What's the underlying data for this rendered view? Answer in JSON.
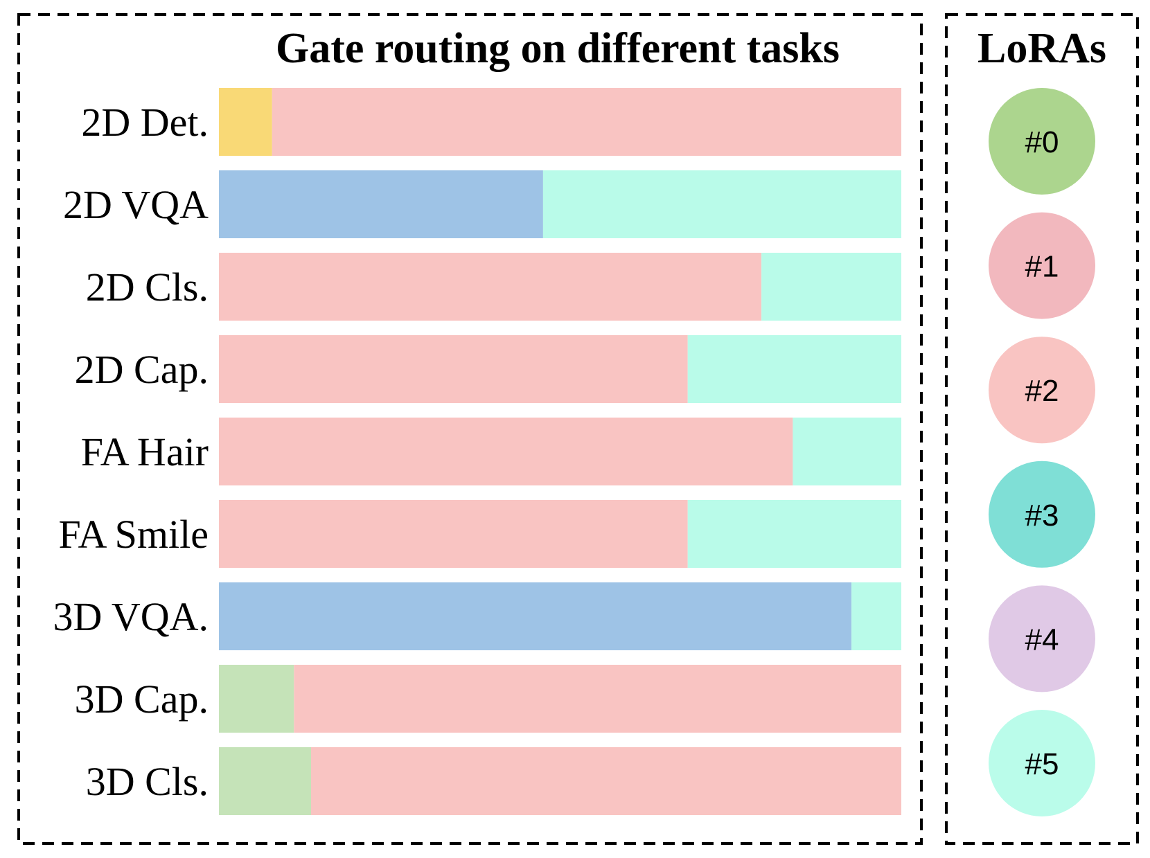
{
  "chart_data": {
    "type": "bar",
    "orientation": "horizontal",
    "stacked": true,
    "title": "Gate routing on different tasks",
    "legend_title": "LoRAs",
    "legend_position": "right",
    "categories": [
      "2D Det.",
      "2D VQA",
      "2D Cls.",
      "2D Cap.",
      "FA Hair",
      "FA Smile",
      "3D VQA.",
      "3D Cap.",
      "3D Cls."
    ],
    "series": [
      {
        "name": "#0",
        "color": "#c5e3b8",
        "values": [
          0,
          0,
          0,
          0,
          0,
          0,
          0,
          0.11,
          0.135
        ]
      },
      {
        "name": "#1",
        "color": "#f9d976",
        "values": [
          0.078,
          0,
          0,
          0,
          0,
          0,
          0,
          0,
          0
        ]
      },
      {
        "name": "#2",
        "color": "#f9c4c2",
        "values": [
          0.922,
          0,
          0.795,
          0.687,
          0.841,
          0.687,
          0,
          0.89,
          0.865
        ]
      },
      {
        "name": "#3",
        "color": "#9ec3e6",
        "values": [
          0,
          0.475,
          0,
          0,
          0,
          0,
          0.927,
          0,
          0
        ]
      },
      {
        "name": "#5",
        "color": "#b9fbe9",
        "values": [
          0,
          0.525,
          0.205,
          0.313,
          0.159,
          0.313,
          0.073,
          0,
          0
        ]
      }
    ],
    "xlim": [
      0,
      1
    ],
    "legend": [
      {
        "label": "#0",
        "color": "#acd58e"
      },
      {
        "label": "#1",
        "color": "#f2b8be"
      },
      {
        "label": "#2",
        "color": "#f9c4c2"
      },
      {
        "label": "#3",
        "color": "#7fdfd6"
      },
      {
        "label": "#4",
        "color": "#e0c9e6"
      },
      {
        "label": "#5",
        "color": "#bafcea"
      }
    ]
  }
}
